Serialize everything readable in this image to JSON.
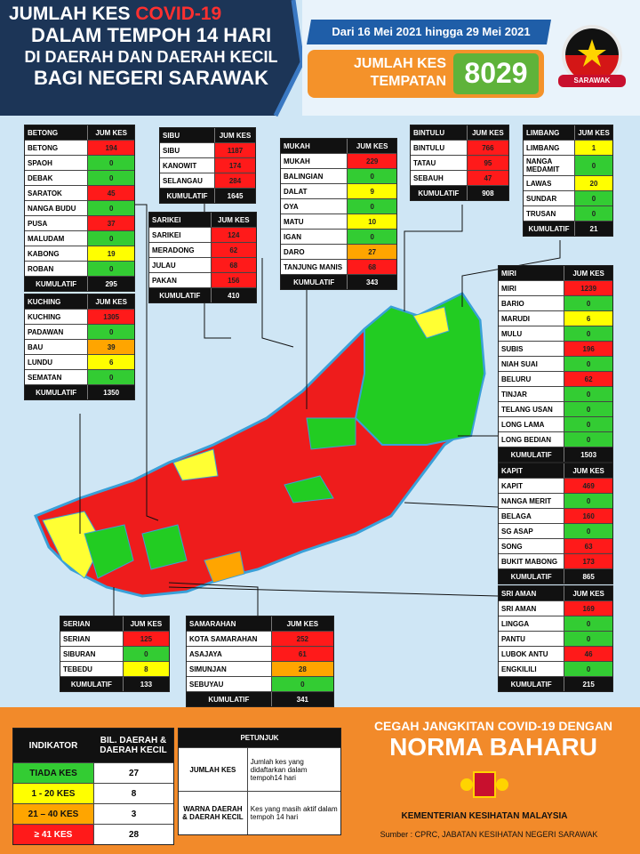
{
  "header": {
    "title_line1": "JUMLAH KES",
    "title_highlight": "COVID-19",
    "title_line2": "DALAM TEMPOH 14 HARI",
    "title_line3": "DI DAERAH DAN DAERAH KECIL",
    "title_line4": "BAGI NEGERI SARAWAK",
    "date_range": "Dari 16 Mei 2021 hingga 29 Mei 2021",
    "total_label": "JUMLAH KES TEMPATAN",
    "total": 8029,
    "badge": "SARAWAK"
  },
  "divisions": [
    {
      "name": "BETONG",
      "header": "JUM KES",
      "rows": [
        {
          "district": "BETONG",
          "cases": 194,
          "color": "#ff1a1a"
        },
        {
          "district": "SPAOH",
          "cases": 0,
          "color": "#33cc33"
        },
        {
          "district": "DEBAK",
          "cases": 0,
          "color": "#33cc33"
        },
        {
          "district": "SARATOK",
          "cases": 45,
          "color": "#ff1a1a"
        },
        {
          "district": "NANGA BUDU",
          "cases": 0,
          "color": "#33cc33"
        },
        {
          "district": "PUSA",
          "cases": 37,
          "color": "#ff1a1a"
        },
        {
          "district": "MALUDAM",
          "cases": 0,
          "color": "#33cc33"
        },
        {
          "district": "KABONG",
          "cases": 19,
          "color": "#ffff00"
        },
        {
          "district": "ROBAN",
          "cases": 0,
          "color": "#33cc33"
        }
      ],
      "total_label": "KUMULATIF",
      "total": 295
    },
    {
      "name": "SIBU",
      "header": "JUM KES",
      "rows": [
        {
          "district": "SIBU",
          "cases": 1187,
          "color": "#ff1a1a"
        },
        {
          "district": "KANOWIT",
          "cases": 174,
          "color": "#ff1a1a"
        },
        {
          "district": "SELANGAU",
          "cases": 284,
          "color": "#ff1a1a"
        }
      ],
      "total_label": "KUMULATIF",
      "total": 1645
    },
    {
      "name": "SARIKEI",
      "header": "JUM KES",
      "rows": [
        {
          "district": "SARIKEI",
          "cases": 124,
          "color": "#ff1a1a"
        },
        {
          "district": "MERADONG",
          "cases": 62,
          "color": "#ff1a1a"
        },
        {
          "district": "JULAU",
          "cases": 68,
          "color": "#ff1a1a"
        },
        {
          "district": "PAKAN",
          "cases": 156,
          "color": "#ff1a1a"
        }
      ],
      "total_label": "KUMULATIF",
      "total": 410
    },
    {
      "name": "MUKAH",
      "header": "JUM KES",
      "rows": [
        {
          "district": "MUKAH",
          "cases": 229,
          "color": "#ff1a1a"
        },
        {
          "district": "BALINGIAN",
          "cases": 0,
          "color": "#33cc33"
        },
        {
          "district": "DALAT",
          "cases": 9,
          "color": "#ffff00"
        },
        {
          "district": "OYA",
          "cases": 0,
          "color": "#33cc33"
        },
        {
          "district": "MATU",
          "cases": 10,
          "color": "#ffff00"
        },
        {
          "district": "IGAN",
          "cases": 0,
          "color": "#33cc33"
        },
        {
          "district": "DARO",
          "cases": 27,
          "color": "#ffa500"
        },
        {
          "district": "TANJUNG MANIS",
          "cases": 68,
          "color": "#ff1a1a"
        }
      ],
      "total_label": "KUMULATIF",
      "total": 343
    },
    {
      "name": "BINTULU",
      "header": "JUM KES",
      "rows": [
        {
          "district": "BINTULU",
          "cases": 766,
          "color": "#ff1a1a"
        },
        {
          "district": "TATAU",
          "cases": 95,
          "color": "#ff1a1a"
        },
        {
          "district": "SEBAUH",
          "cases": 47,
          "color": "#ff1a1a"
        }
      ],
      "total_label": "KUMULATIF",
      "total": 908
    },
    {
      "name": "LIMBANG",
      "header": "JUM KES",
      "rows": [
        {
          "district": "LIMBANG",
          "cases": 1,
          "color": "#ffff00"
        },
        {
          "district": "NANGA MEDAMIT",
          "cases": 0,
          "color": "#33cc33"
        },
        {
          "district": "LAWAS",
          "cases": 20,
          "color": "#ffff00"
        },
        {
          "district": "SUNDAR",
          "cases": 0,
          "color": "#33cc33"
        },
        {
          "district": "TRUSAN",
          "cases": 0,
          "color": "#33cc33"
        }
      ],
      "total_label": "KUMULATIF",
      "total": 21
    },
    {
      "name": "KUCHING",
      "header": "JUM KES",
      "rows": [
        {
          "district": "KUCHING",
          "cases": 1305,
          "color": "#ff1a1a"
        },
        {
          "district": "PADAWAN",
          "cases": 0,
          "color": "#33cc33"
        },
        {
          "district": "BAU",
          "cases": 39,
          "color": "#ffa500"
        },
        {
          "district": "LUNDU",
          "cases": 6,
          "color": "#ffff00"
        },
        {
          "district": "SEMATAN",
          "cases": 0,
          "color": "#33cc33"
        }
      ],
      "total_label": "KUMULATIF",
      "total": 1350
    },
    {
      "name": "MIRI",
      "header": "JUM KES",
      "rows": [
        {
          "district": "MIRI",
          "cases": 1239,
          "color": "#ff1a1a"
        },
        {
          "district": "BARIO",
          "cases": 0,
          "color": "#33cc33"
        },
        {
          "district": "MARUDI",
          "cases": 6,
          "color": "#ffff00"
        },
        {
          "district": "MULU",
          "cases": 0,
          "color": "#33cc33"
        },
        {
          "district": "SUBIS",
          "cases": 196,
          "color": "#ff1a1a"
        },
        {
          "district": "NIAH SUAI",
          "cases": 0,
          "color": "#33cc33"
        },
        {
          "district": "BELURU",
          "cases": 62,
          "color": "#ff1a1a"
        },
        {
          "district": "TINJAR",
          "cases": 0,
          "color": "#33cc33"
        },
        {
          "district": "TELANG USAN",
          "cases": 0,
          "color": "#33cc33"
        },
        {
          "district": "LONG LAMA",
          "cases": 0,
          "color": "#33cc33"
        },
        {
          "district": "LONG BEDIAN",
          "cases": 0,
          "color": "#33cc33"
        }
      ],
      "total_label": "KUMULATIF",
      "total": 1503
    },
    {
      "name": "KAPIT",
      "header": "JUM KES",
      "rows": [
        {
          "district": "KAPIT",
          "cases": 469,
          "color": "#ff1a1a"
        },
        {
          "district": "NANGA MERIT",
          "cases": 0,
          "color": "#33cc33"
        },
        {
          "district": "BELAGA",
          "cases": 160,
          "color": "#ff1a1a"
        },
        {
          "district": "SG ASAP",
          "cases": 0,
          "color": "#33cc33"
        },
        {
          "district": "SONG",
          "cases": 63,
          "color": "#ff1a1a"
        },
        {
          "district": "BUKIT MABONG",
          "cases": 173,
          "color": "#ff1a1a"
        }
      ],
      "total_label": "KUMULATIF",
      "total": 865
    },
    {
      "name": "SRI AMAN",
      "header": "JUM KES",
      "rows": [
        {
          "district": "SRI AMAN",
          "cases": 169,
          "color": "#ff1a1a"
        },
        {
          "district": "LINGGA",
          "cases": 0,
          "color": "#33cc33"
        },
        {
          "district": "PANTU",
          "cases": 0,
          "color": "#33cc33"
        },
        {
          "district": "LUBOK ANTU",
          "cases": 46,
          "color": "#ff1a1a"
        },
        {
          "district": "ENGKILILI",
          "cases": 0,
          "color": "#33cc33"
        }
      ],
      "total_label": "KUMULATIF",
      "total": 215
    },
    {
      "name": "SERIAN",
      "header": "JUM KES",
      "rows": [
        {
          "district": "SERIAN",
          "cases": 125,
          "color": "#ff1a1a"
        },
        {
          "district": "SIBURAN",
          "cases": 0,
          "color": "#33cc33"
        },
        {
          "district": "TEBEDU",
          "cases": 8,
          "color": "#ffff00"
        }
      ],
      "total_label": "KUMULATIF",
      "total": 133
    },
    {
      "name": "SAMARAHAN",
      "header": "JUM KES",
      "rows": [
        {
          "district": "KOTA SAMARAHAN",
          "cases": 252,
          "color": "#ff1a1a"
        },
        {
          "district": "ASAJAYA",
          "cases": 61,
          "color": "#ff1a1a"
        },
        {
          "district": "SIMUNJAN",
          "cases": 28,
          "color": "#ffa500"
        },
        {
          "district": "SEBUYAU",
          "cases": 0,
          "color": "#33cc33"
        }
      ],
      "total_label": "KUMULATIF",
      "total": 341
    }
  ],
  "legend": {
    "header_indicator": "INDIKATOR",
    "header_count": "BIL. DAERAH & DAERAH KECIL",
    "rows": [
      {
        "label": "TIADA KES",
        "count": 27,
        "color": "#33cc33"
      },
      {
        "label": "1 - 20 KES",
        "count": 8,
        "color": "#ffff00"
      },
      {
        "label": "21 – 40 KES",
        "count": 3,
        "color": "#ffa500"
      },
      {
        "label": "≥ 41 KES",
        "count": 28,
        "color": "#ff1a1a"
      }
    ]
  },
  "guide": {
    "title": "PETUNJUK",
    "rows": [
      {
        "term": "JUMLAH KES",
        "description": "Jumlah kes yang didaftarkan dalam tempoh14 hari"
      },
      {
        "term": "WARNA DAERAH & DAERAH KECIL",
        "description": "Kes yang masih aktif dalam tempoh 14 hari"
      }
    ]
  },
  "footer": {
    "slogan_line1": "CEGAH JANGKITAN COVID-19 DENGAN",
    "slogan_line2": "NORMA BAHARU",
    "ministry": "KEMENTERIAN KESIHATAN MALAYSIA",
    "source": "Sumber : CPRC, JABATAN KESIHATAN NEGERI SARAWAK"
  }
}
